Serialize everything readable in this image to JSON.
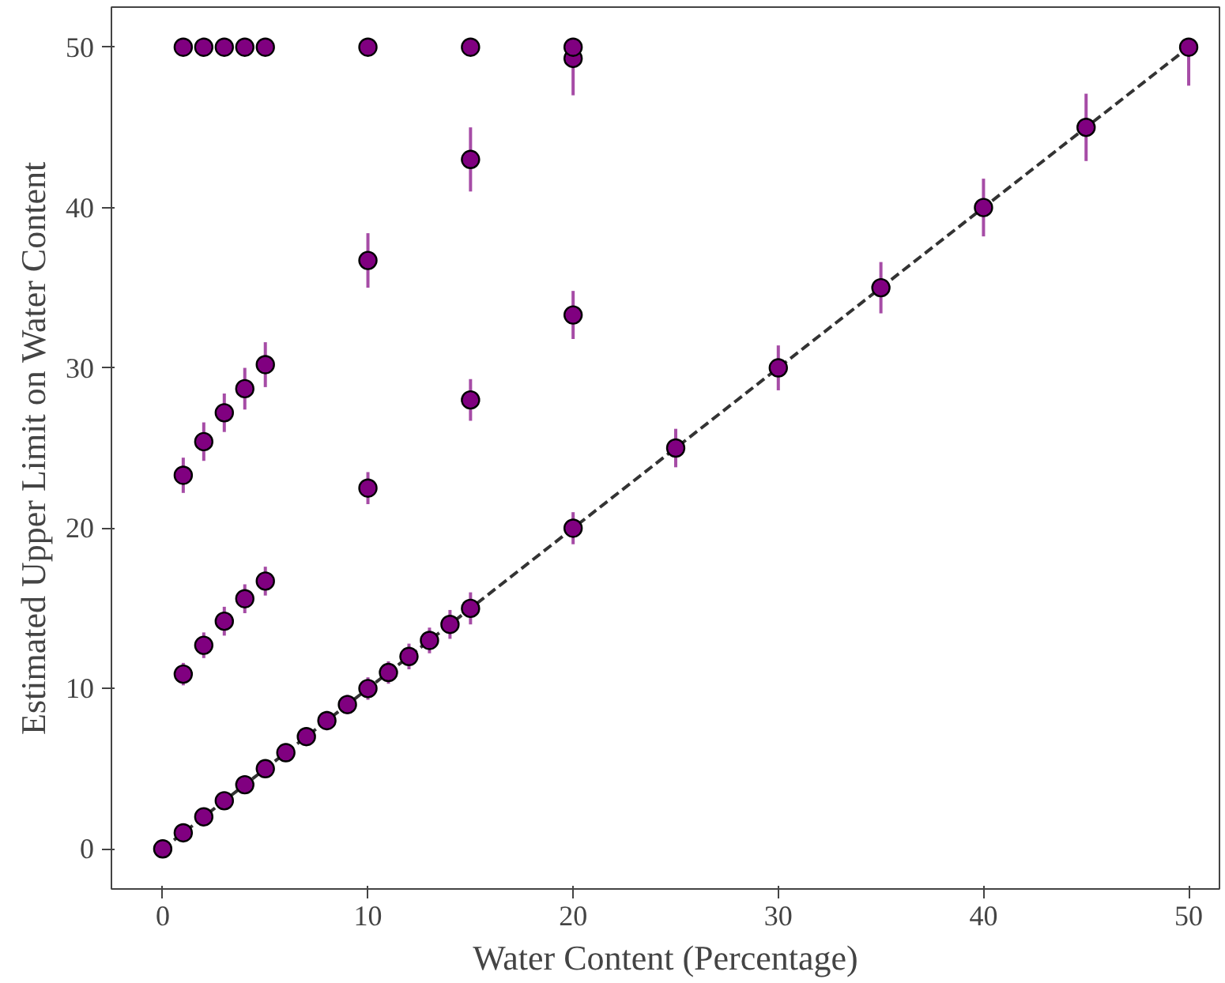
{
  "chart_data": {
    "type": "scatter",
    "xlabel": "Water Content (Percentage)",
    "ylabel": "Estimated Upper Limit on Water Content",
    "xlim": [
      -2.5,
      51.5
    ],
    "ylim": [
      -2.5,
      52.5
    ],
    "xticks": [
      0,
      10,
      20,
      30,
      40,
      50
    ],
    "yticks": [
      0,
      10,
      20,
      30,
      40,
      50
    ],
    "grid": false,
    "marker": "circle",
    "series": [
      {
        "type": "line",
        "line_style": "dashed",
        "marker": "none",
        "color": "#333333",
        "x": [
          0,
          50
        ],
        "values": [
          0,
          50
        ]
      },
      {
        "color": "#800080",
        "x": [
          0,
          1,
          2,
          3,
          4,
          5,
          6,
          7,
          8,
          9,
          10,
          11,
          12,
          13,
          14,
          15,
          20,
          25,
          30,
          35,
          40,
          45,
          50,
          1,
          2,
          3,
          4,
          5,
          10,
          15,
          20,
          1,
          2,
          3,
          4,
          5,
          10,
          15,
          20,
          1,
          2,
          3,
          4,
          5,
          10,
          15,
          20
        ],
        "values": [
          0,
          1,
          2,
          3,
          4,
          5,
          6,
          7,
          8,
          9,
          10,
          11,
          12,
          13,
          14,
          15,
          20,
          25,
          30,
          35,
          40,
          45,
          50,
          10.9,
          12.7,
          14.2,
          15.6,
          16.7,
          22.5,
          28.0,
          33.3,
          23.3,
          25.4,
          27.2,
          28.7,
          30.2,
          36.7,
          43.0,
          49.3,
          50,
          50,
          50,
          50,
          50,
          50,
          50,
          50
        ],
        "errors": [
          null,
          0.3,
          0.4,
          0.4,
          0.5,
          0.5,
          0.5,
          0.5,
          0.6,
          0.6,
          0.7,
          0.7,
          0.8,
          0.8,
          0.9,
          1.0,
          1.0,
          1.2,
          1.4,
          1.6,
          1.8,
          2.1,
          [
            47.6,
            50
          ],
          0.7,
          0.8,
          0.9,
          0.9,
          0.9,
          1.0,
          1.3,
          1.5,
          1.1,
          1.2,
          1.2,
          1.3,
          1.4,
          1.7,
          2.0,
          [
            47.0,
            49.3
          ],
          null,
          null,
          null,
          null,
          null,
          null,
          null,
          null
        ]
      }
    ]
  }
}
